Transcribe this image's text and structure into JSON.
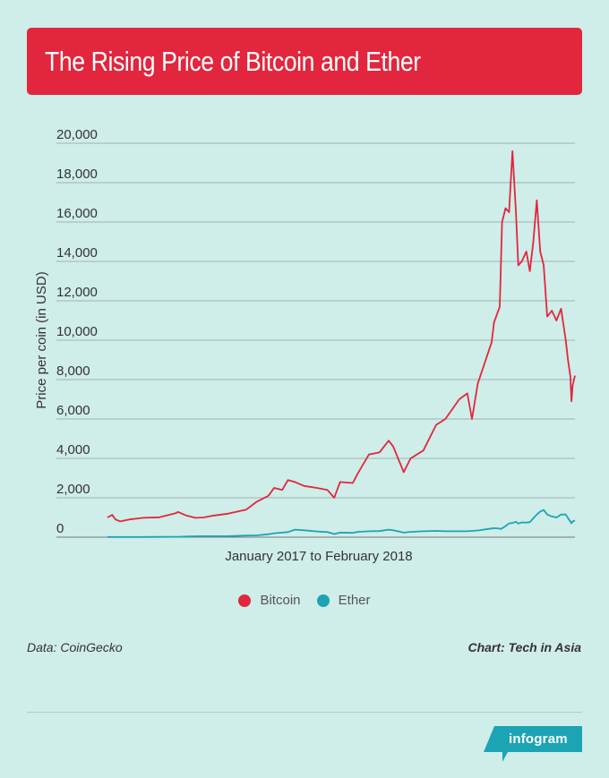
{
  "header": {
    "title": "The Rising Price of Bitcoin and Ether"
  },
  "footer": {
    "source": "Data: CoinGecko",
    "credit": "Chart: Tech in Asia",
    "badge": "infogram"
  },
  "colors": {
    "bitcoin": "#e2263d",
    "ether": "#1ca4b4",
    "grid": "#555555",
    "background": "#cfede9"
  },
  "chart_data": {
    "type": "line",
    "xlabel": "January 2017 to February 2018",
    "ylabel": "Price per coin (in USD)",
    "ylim": [
      0,
      20000
    ],
    "yticks": [
      "0",
      "2,000",
      "4,000",
      "6,000",
      "8,000",
      "10,000",
      "12,000",
      "14,000",
      "16,000",
      "18,000",
      "20,000"
    ],
    "grid": true,
    "legend_position": "bottom",
    "x": [
      "2017-01-01",
      "2017-01-05",
      "2017-01-08",
      "2017-01-12",
      "2017-01-20",
      "2017-02-01",
      "2017-02-15",
      "2017-03-01",
      "2017-03-03",
      "2017-03-10",
      "2017-03-18",
      "2017-03-25",
      "2017-04-01",
      "2017-04-15",
      "2017-05-01",
      "2017-05-10",
      "2017-05-20",
      "2017-05-25",
      "2017-06-01",
      "2017-06-06",
      "2017-06-12",
      "2017-06-20",
      "2017-07-01",
      "2017-07-10",
      "2017-07-16",
      "2017-07-21",
      "2017-08-01",
      "2017-08-05",
      "2017-08-15",
      "2017-08-24",
      "2017-09-01",
      "2017-09-05",
      "2017-09-14",
      "2017-09-20",
      "2017-10-01",
      "2017-10-12",
      "2017-10-20",
      "2017-11-01",
      "2017-11-08",
      "2017-11-12",
      "2017-11-17",
      "2017-11-29",
      "2017-12-01",
      "2017-12-06",
      "2017-12-07",
      "2017-12-08",
      "2017-12-11",
      "2017-12-14",
      "2017-12-17",
      "2017-12-20",
      "2017-12-22",
      "2017-12-25",
      "2017-12-29",
      "2018-01-01",
      "2018-01-04",
      "2018-01-07",
      "2018-01-10",
      "2018-01-13",
      "2018-01-16",
      "2018-01-20",
      "2018-01-24",
      "2018-01-28",
      "2018-02-01",
      "2018-02-03",
      "2018-02-05",
      "2018-02-06",
      "2018-02-07",
      "2018-02-09"
    ],
    "series": [
      {
        "name": "Bitcoin",
        "color": "#e2263d",
        "values": [
          1000,
          1130,
          900,
          800,
          900,
          980,
          1010,
          1220,
          1280,
          1100,
          980,
          1000,
          1080,
          1190,
          1400,
          1800,
          2100,
          2500,
          2400,
          2900,
          2800,
          2600,
          2500,
          2400,
          2000,
          2800,
          2750,
          3200,
          4200,
          4300,
          4900,
          4600,
          3300,
          4000,
          4400,
          5700,
          6000,
          7000,
          7300,
          6000,
          7800,
          9900,
          10900,
          11700,
          13800,
          16000,
          16700,
          16500,
          19600,
          16500,
          13800,
          14000,
          14500,
          13500,
          15000,
          17100,
          14500,
          13800,
          11200,
          11500,
          11000,
          11600,
          10000,
          9000,
          8200,
          6900,
          7700,
          8200
        ]
      },
      {
        "name": "Ether",
        "color": "#1ca4b4",
        "values": [
          8,
          10,
          10,
          10,
          10,
          11,
          12,
          17,
          20,
          30,
          45,
          50,
          50,
          48,
          80,
          90,
          150,
          200,
          230,
          260,
          380,
          350,
          290,
          260,
          160,
          230,
          220,
          270,
          300,
          310,
          380,
          350,
          230,
          270,
          300,
          320,
          300,
          300,
          300,
          320,
          340,
          440,
          460,
          430,
          420,
          450,
          560,
          700,
          720,
          780,
          690,
          750,
          740,
          760,
          960,
          1150,
          1300,
          1380,
          1150,
          1050,
          1000,
          1150,
          1150,
          970,
          800,
          700,
          800,
          840
        ]
      }
    ]
  }
}
